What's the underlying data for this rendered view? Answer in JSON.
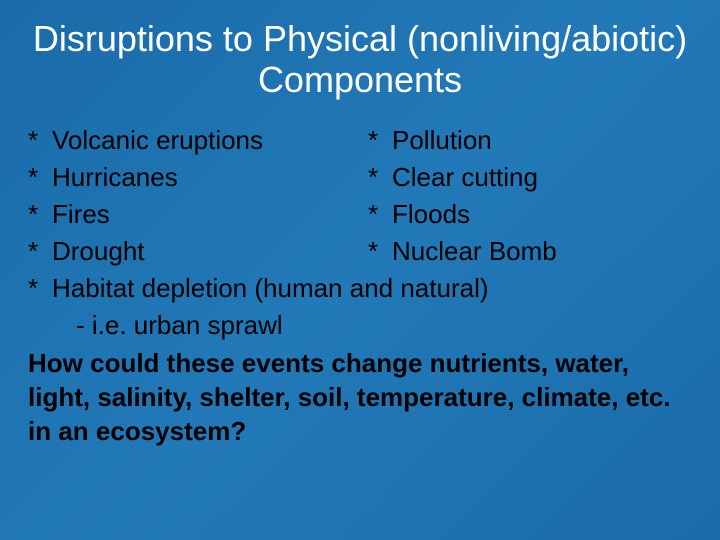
{
  "slide": {
    "title": "Disruptions to Physical (nonliving/abiotic) Components",
    "bullet_char": "*",
    "rows": [
      {
        "left": "Volcanic eruptions",
        "right": "Pollution"
      },
      {
        "left": "Hurricanes",
        "right": "Clear cutting"
      },
      {
        "left": "Fires",
        "right": "Floods"
      },
      {
        "left": "Drought",
        "right": "Nuclear Bomb"
      }
    ],
    "full_row": "Habitat depletion (human and natural)",
    "sub_item": "-   i.e. urban sprawl",
    "question": "How could these events change nutrients, water, light, salinity, shelter, soil, temperature, climate, etc. in an ecosystem?"
  },
  "colors": {
    "background_start": "#1a6ba8",
    "background_mid": "#2279b8",
    "title_color": "#ffffff",
    "text_color": "#000000"
  },
  "typography": {
    "title_fontsize": 36,
    "body_fontsize": 26,
    "font_family": "Arial"
  }
}
